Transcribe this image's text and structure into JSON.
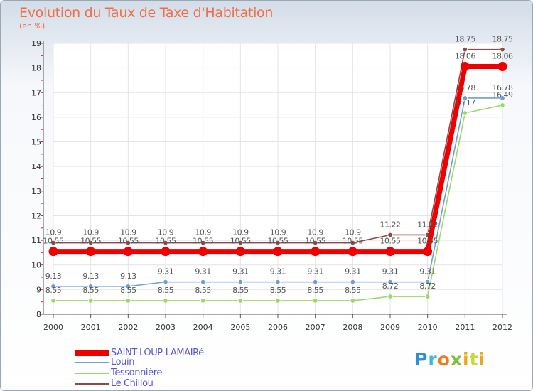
{
  "chart_data": {
    "type": "line",
    "title": "Evolution du Taux de Taxe d'Habitation",
    "unit_label": "(en %)",
    "xlabel": "",
    "ylabel": "(en %)",
    "x": [
      "2000",
      "2001",
      "2002",
      "2003",
      "2004",
      "2005",
      "2006",
      "2007",
      "2008",
      "2009",
      "2010",
      "2011",
      "2012"
    ],
    "ylim": [
      8,
      19
    ],
    "yticks": [
      "8",
      "9",
      "10",
      "11",
      "12",
      "13",
      "14",
      "15",
      "16",
      "17",
      "18",
      "19"
    ],
    "series": [
      {
        "name": "SAINT-LOUP-LAMAIRé",
        "color": "#ee0000",
        "values": [
          10.55,
          10.55,
          10.55,
          10.55,
          10.55,
          10.55,
          10.55,
          10.55,
          10.55,
          10.55,
          10.55,
          18.06,
          18.06
        ],
        "labels": [
          "10.55",
          "10.55",
          "10.55",
          "10.55",
          "10.55",
          "10.55",
          "10.55",
          "10.55",
          "10.55",
          "10.55",
          "10.55",
          "18.06",
          "18.06"
        ]
      },
      {
        "name": "Louin",
        "color": "#6f9fd0",
        "values": [
          9.13,
          9.13,
          9.13,
          9.31,
          9.31,
          9.31,
          9.31,
          9.31,
          9.31,
          9.31,
          9.31,
          16.78,
          16.78
        ],
        "labels": [
          "9.13",
          "9.13",
          "9.13",
          "9.31",
          "9.31",
          "9.31",
          "9.31",
          "9.31",
          "9.31",
          "9.31",
          "9.31",
          "16.78",
          "16.78"
        ]
      },
      {
        "name": "Tessonnière",
        "color": "#9bd86a",
        "values": [
          8.55,
          8.55,
          8.55,
          8.55,
          8.55,
          8.55,
          8.55,
          8.55,
          8.55,
          8.72,
          8.72,
          16.17,
          16.49
        ],
        "labels": [
          "8.55",
          "8.55",
          "8.55",
          "8.55",
          "8.55",
          "8.55",
          "8.55",
          "8.55",
          "8.55",
          "8.72",
          "8.72",
          "16.17",
          "16.49"
        ]
      },
      {
        "name": "Le Chillou",
        "color": "#8c4a4a",
        "values": [
          10.9,
          10.9,
          10.9,
          10.9,
          10.9,
          10.9,
          10.9,
          10.9,
          10.9,
          11.22,
          11.22,
          18.75,
          18.75
        ],
        "labels": [
          "10.9",
          "10.9",
          "10.9",
          "10.9",
          "10.9",
          "10.9",
          "10.9",
          "10.9",
          "10.9",
          "11.22",
          "11.22",
          "18.75",
          "18.75"
        ]
      }
    ],
    "grid": true,
    "legend": "bottom-left"
  },
  "logo": {
    "letters": [
      "P",
      "r",
      "o",
      "x",
      "i",
      "t",
      "i"
    ]
  }
}
